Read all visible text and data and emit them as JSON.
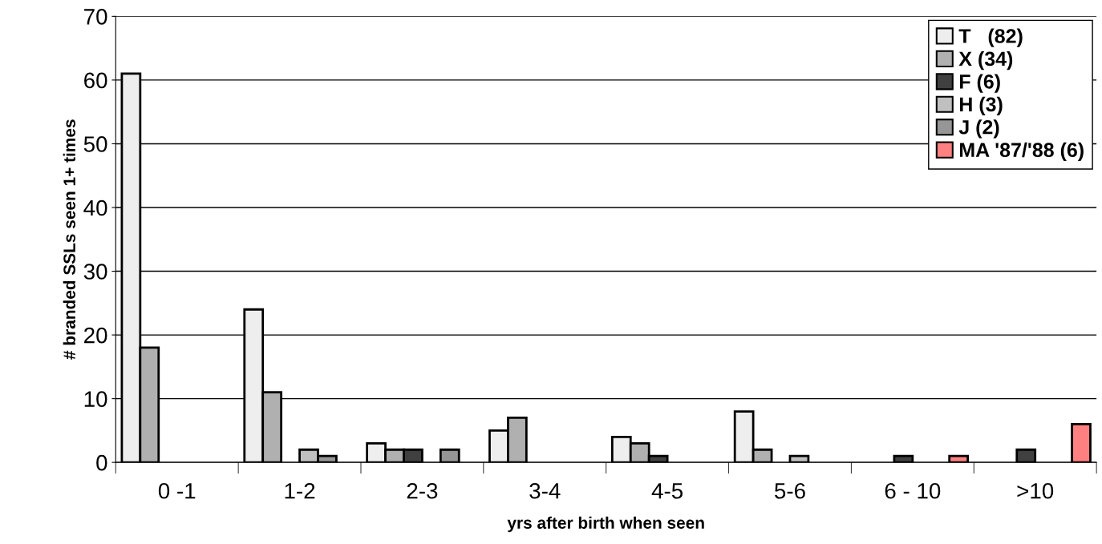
{
  "chart_data": {
    "type": "bar",
    "xlabel": "yrs after birth when seen",
    "ylabel": "# branded SSLs seen 1+ times",
    "categories": [
      "0 -1",
      "1-2",
      "2-3",
      "3-4",
      "4-5",
      "5-6",
      "6 - 10",
      ">10"
    ],
    "series": [
      {
        "name": "T   (82)",
        "color": "#eeeeee",
        "values": [
          61,
          24,
          3,
          5,
          4,
          8,
          null,
          null
        ]
      },
      {
        "name": "X (34)",
        "color": "#b0b0b0",
        "values": [
          18,
          11,
          2,
          7,
          3,
          2,
          null,
          null
        ]
      },
      {
        "name": "F (6)",
        "color": "#404040",
        "values": [
          null,
          null,
          2,
          null,
          1,
          null,
          1,
          2
        ]
      },
      {
        "name": "H (3)",
        "color": "#c0c0c0",
        "values": [
          null,
          2,
          null,
          null,
          null,
          1,
          null,
          null
        ]
      },
      {
        "name": "J (2)",
        "color": "#969696",
        "values": [
          null,
          1,
          2,
          null,
          null,
          null,
          null,
          null
        ]
      },
      {
        "name": "MA '87/'88 (6)",
        "color": "#ff8080",
        "values": [
          null,
          null,
          null,
          null,
          null,
          null,
          1,
          6
        ]
      }
    ],
    "ylim": [
      0,
      70
    ],
    "yticks": [
      0,
      10,
      20,
      30,
      40,
      50,
      60,
      70
    ],
    "grid": "y",
    "legend": "top right"
  }
}
